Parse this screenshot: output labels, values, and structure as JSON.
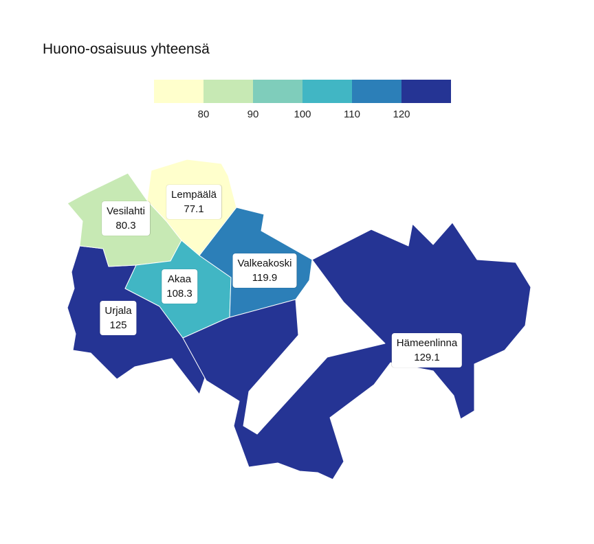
{
  "title": "Huono-osaisuus yhteensä",
  "legend": {
    "colors": [
      "#ffffcc",
      "#c7e9b4",
      "#7fcdbb",
      "#41b6c4",
      "#2c7fb8",
      "#253494"
    ],
    "ticks": [
      "80",
      "90",
      "100",
      "110",
      "120"
    ]
  },
  "chart_data": {
    "type": "choropleth",
    "title": "Huono-osaisuus yhteensä",
    "scale_breaks": [
      80,
      90,
      100,
      110,
      120
    ],
    "regions": [
      {
        "name": "Lempäälä",
        "value": "77.1"
      },
      {
        "name": "Vesilahti",
        "value": "80.3"
      },
      {
        "name": "Akaa",
        "value": "108.3"
      },
      {
        "name": "Valkeakoski",
        "value": "119.9"
      },
      {
        "name": "Urjala",
        "value": "125"
      },
      {
        "name": "Hämeenlinna",
        "value": "129.1"
      }
    ]
  }
}
